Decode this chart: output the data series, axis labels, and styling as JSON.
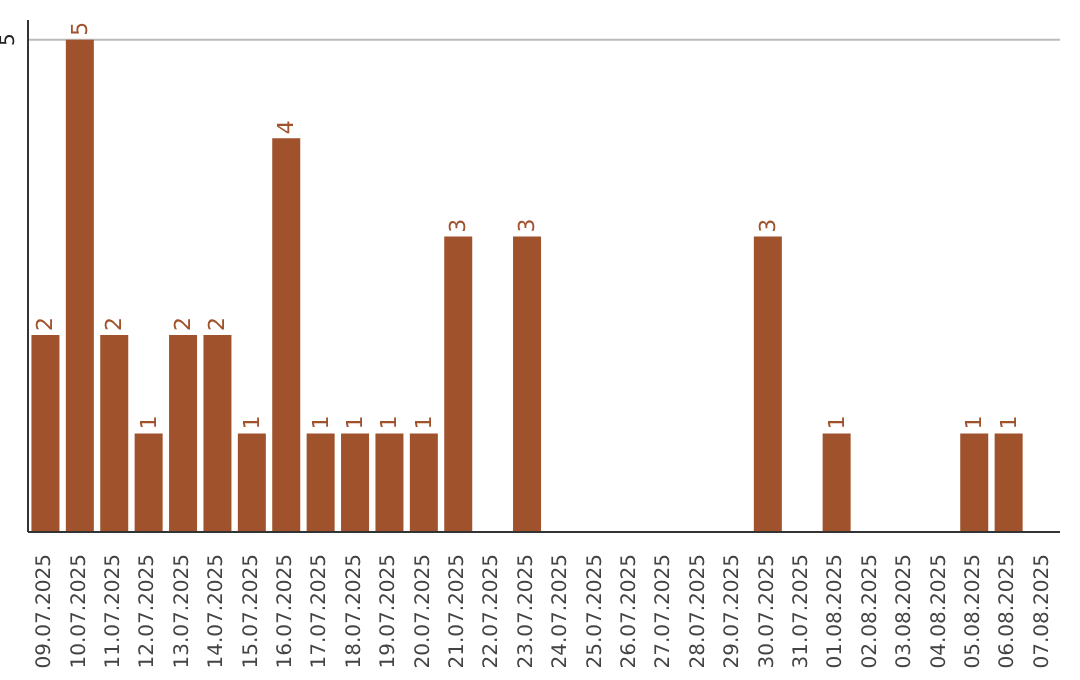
{
  "chart_data": {
    "type": "bar",
    "categories": [
      "09.07.2025",
      "10.07.2025",
      "11.07.2025",
      "12.07.2025",
      "13.07.2025",
      "14.07.2025",
      "15.07.2025",
      "16.07.2025",
      "17.07.2025",
      "18.07.2025",
      "19.07.2025",
      "20.07.2025",
      "21.07.2025",
      "22.07.2025",
      "23.07.2025",
      "24.07.2025",
      "25.07.2025",
      "26.07.2025",
      "27.07.2025",
      "28.07.2025",
      "29.07.2025",
      "30.07.2025",
      "31.07.2025",
      "01.08.2025",
      "02.08.2025",
      "03.08.2025",
      "04.08.2025",
      "05.08.2025",
      "06.08.2025",
      "07.08.2025"
    ],
    "values": [
      2,
      5,
      2,
      1,
      2,
      2,
      1,
      4,
      1,
      1,
      1,
      1,
      3,
      null,
      3,
      null,
      null,
      null,
      null,
      null,
      null,
      3,
      null,
      1,
      null,
      null,
      null,
      1,
      1,
      null
    ],
    "color": "#a0522d",
    "ylim": [
      0,
      5.2
    ],
    "yticks": [
      5
    ],
    "grid": "y",
    "data_labels": true
  }
}
